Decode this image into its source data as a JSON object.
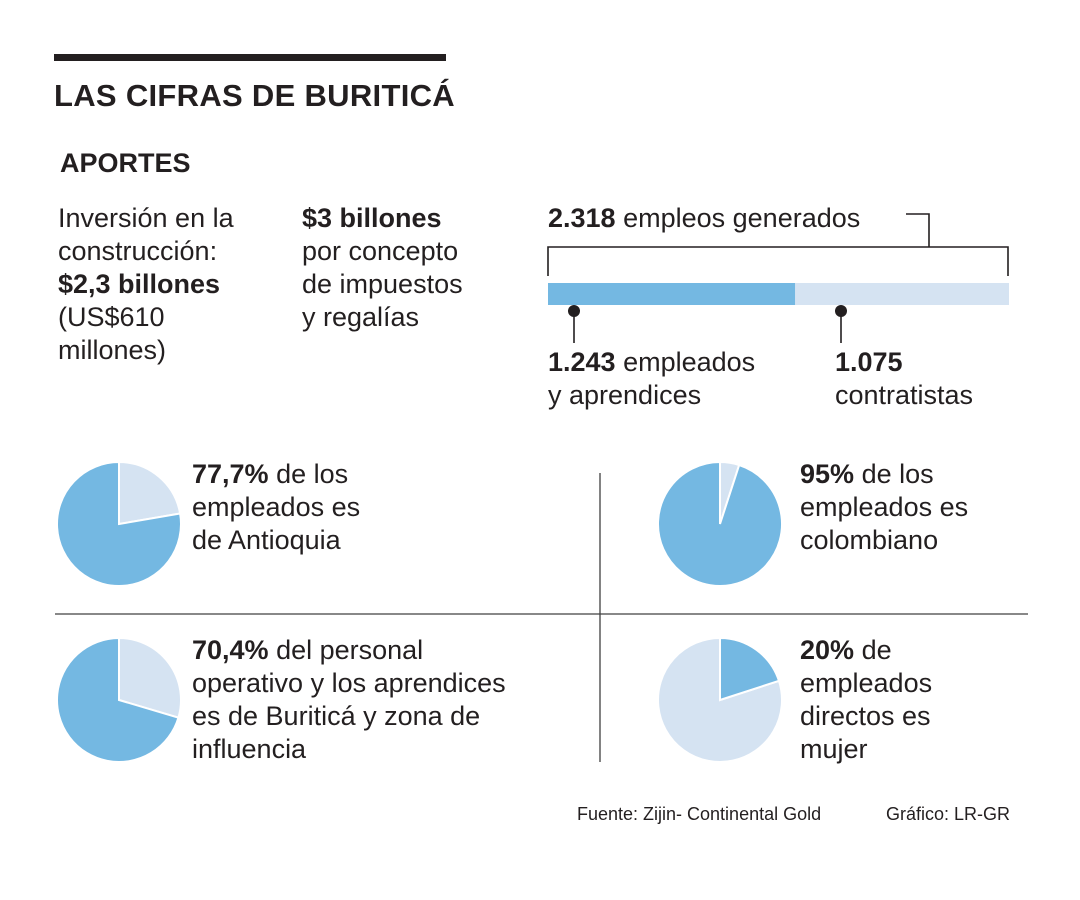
{
  "title": "LAS CIFRAS DE BURITICÁ",
  "section": "APORTES",
  "inversion": {
    "line1": "Inversión en la",
    "line2": "construcción:",
    "amount": "$2,3 billones",
    "line4": "(US$610",
    "line5": "millones)"
  },
  "impuestos": {
    "amount": "$3 billones",
    "line2": "por concepto",
    "line3": "de impuestos",
    "line4": "y regalías"
  },
  "empleos": {
    "total": "2.318",
    "total_label": "empleos generados",
    "empleados_value": "1.243",
    "empleados_label1": "empleados",
    "empleados_label2": "y aprendices",
    "contratistas_value": "1.075",
    "contratistas_label": "contratistas"
  },
  "chart_data": [
    {
      "type": "bar",
      "title": "2.318 empleos generados",
      "categories": [
        "1.243 empleados y aprendices",
        "1.075 contratistas"
      ],
      "values": [
        1243,
        1075
      ],
      "total": 2318
    },
    {
      "type": "pie",
      "highlight": "77,7%",
      "text": "de los empleados es de Antioquia",
      "values": [
        77.7,
        22.3
      ]
    },
    {
      "type": "pie",
      "highlight": "95%",
      "text": "de los empleados es colombiano",
      "values": [
        95,
        5
      ]
    },
    {
      "type": "pie",
      "highlight": "70,4%",
      "text": "del personal operativo y los aprendices es de Buriticá y zona de influencia",
      "values": [
        70.4,
        29.6
      ]
    },
    {
      "type": "pie",
      "highlight": "20%",
      "text": "de empleados directos es mujer",
      "values": [
        20,
        80
      ]
    }
  ],
  "stats": {
    "antioquia": {
      "pct": "77,7%",
      "l1": "de los",
      "l2": "empleados es",
      "l3": "de Antioquia"
    },
    "colombiano": {
      "pct": "95%",
      "l1": "de los",
      "l2": "empleados es",
      "l3": "colombiano"
    },
    "buritica": {
      "pct": "70,4%",
      "l1": "del personal",
      "l2": "operativo y los aprendices",
      "l3": "es de Buriticá y zona de",
      "l4": "influencia"
    },
    "mujer": {
      "pct": "20%",
      "l1": "de",
      "l2": "empleados",
      "l3": "directos es",
      "l4": "mujer"
    }
  },
  "footer": {
    "source": "Fuente: Zijin- Continental Gold",
    "credit": "Gráfico: LR-GR"
  },
  "colors": {
    "primary": "#74b8e2",
    "secondary": "#d5e3f2",
    "text": "#231f20",
    "rule": "#404040"
  }
}
